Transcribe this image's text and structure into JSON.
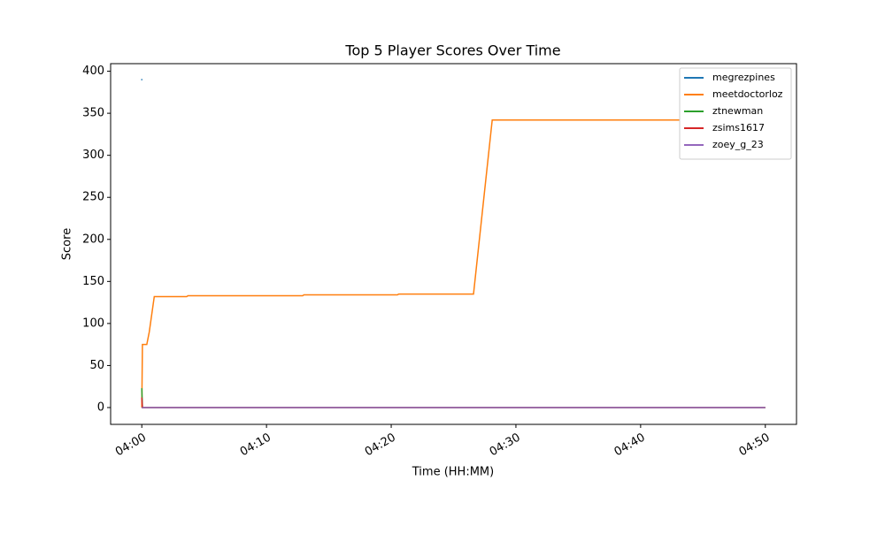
{
  "chart_data": {
    "type": "line",
    "title": "Top 5 Player Scores Over Time",
    "x_label": "Time (HH:MM)",
    "y_label": "Score",
    "xlim": [
      -2.5,
      52.5
    ],
    "xticks": [
      {
        "value": 0,
        "label": "04:00"
      },
      {
        "value": 10,
        "label": "04:10"
      },
      {
        "value": 20,
        "label": "04:20"
      },
      {
        "value": 30,
        "label": "04:30"
      },
      {
        "value": 40,
        "label": "04:40"
      },
      {
        "value": 50,
        "label": "04:50"
      }
    ],
    "ylim": [
      -20,
      409
    ],
    "yticks": [
      0,
      50,
      100,
      150,
      200,
      250,
      300,
      350,
      400
    ],
    "legend": "upper right",
    "series": [
      {
        "name": "megrezpines",
        "color": "#1f77b4",
        "x": [
          -0.05,
          0.05
        ],
        "values": [
          390,
          390
        ]
      },
      {
        "name": "meetdoctorloz",
        "color": "#ff7f0e",
        "x": [
          0,
          0.05,
          0.4,
          0.6,
          1.0,
          3.6,
          3.7,
          12.9,
          13.0,
          20.5,
          20.6,
          26.6,
          28.1,
          50
        ],
        "values": [
          0,
          75,
          75,
          90,
          132,
          132,
          133,
          133,
          134,
          134,
          135,
          135,
          342,
          342
        ]
      },
      {
        "name": "ztnewman",
        "color": "#2ca02c",
        "x": [
          0,
          0.05,
          50
        ],
        "values": [
          23,
          0,
          0
        ]
      },
      {
        "name": "zsims1617",
        "color": "#d62728",
        "x": [
          0,
          0.05,
          50
        ],
        "values": [
          12,
          0,
          0
        ]
      },
      {
        "name": "zoey_g_23",
        "color": "#9467bd",
        "x": [
          0,
          50
        ],
        "values": [
          0,
          0
        ]
      }
    ]
  }
}
